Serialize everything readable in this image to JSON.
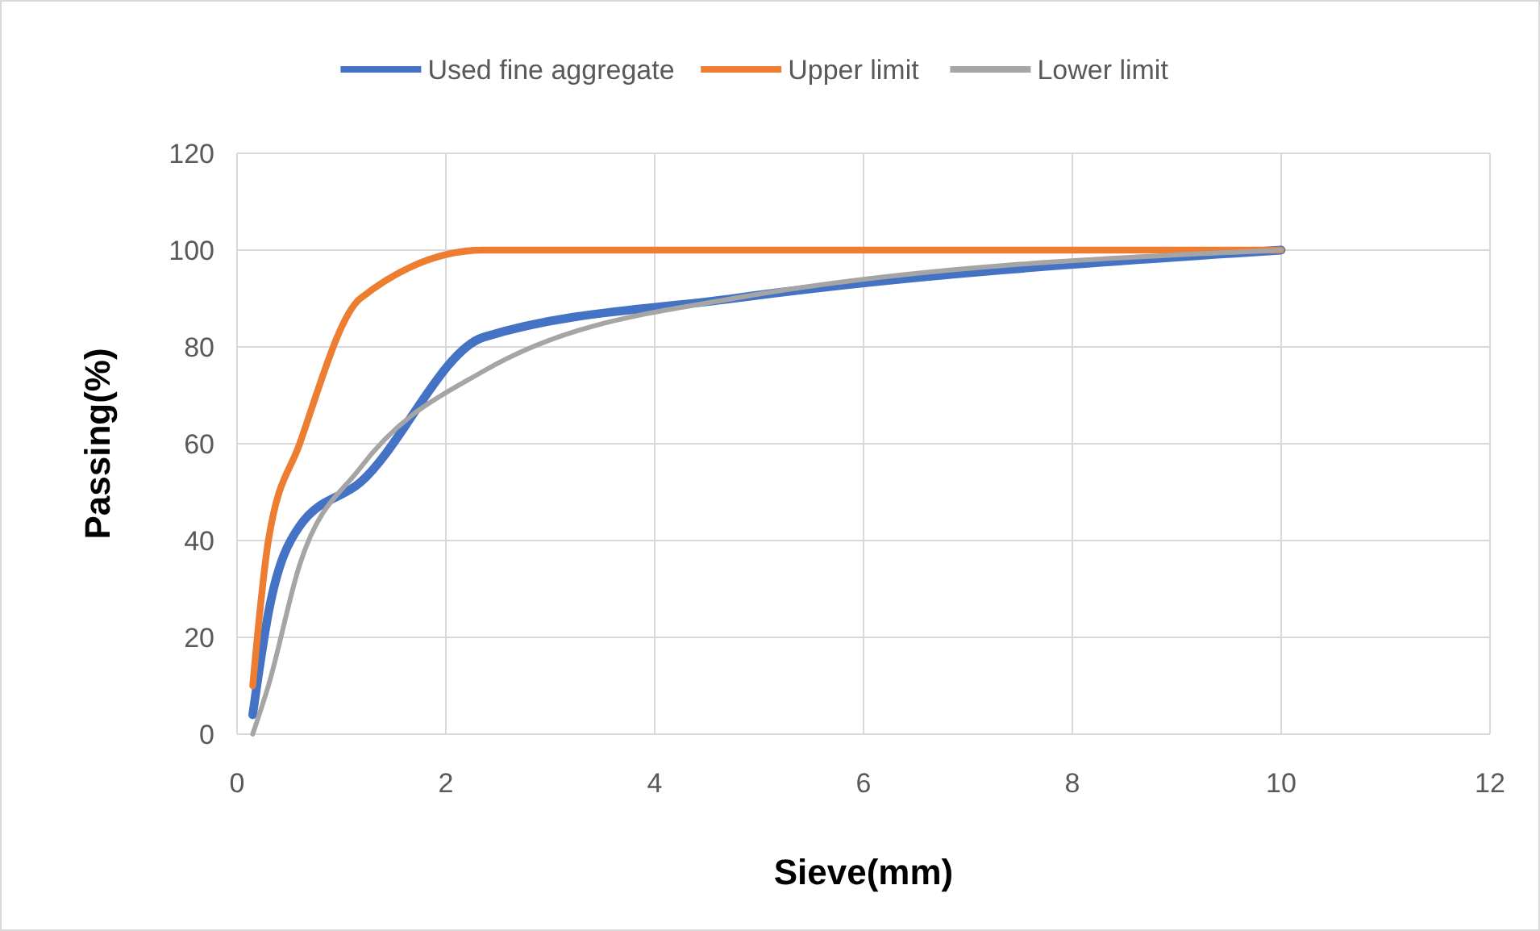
{
  "chart_data": {
    "type": "line",
    "xlabel": "Sieve(mm)",
    "ylabel": "Passing(%)",
    "x": [
      0.15,
      0.3,
      0.6,
      1.18,
      2.36,
      4.75,
      10
    ],
    "series": [
      {
        "name": "Used fine aggregate",
        "color": "#4472c4",
        "values": [
          4,
          25,
          43,
          52,
          82,
          90,
          100
        ]
      },
      {
        "name": "Upper limit",
        "color": "#ed7d31",
        "values": [
          10,
          40,
          60,
          90,
          100,
          100,
          100
        ]
      },
      {
        "name": "Lower limit",
        "color": "#a5a5a5",
        "values": [
          0,
          10,
          35,
          55,
          75,
          90,
          100
        ]
      }
    ],
    "xlim": [
      0,
      12
    ],
    "xticks": [
      0,
      2,
      4,
      6,
      8,
      10,
      12
    ],
    "ylim": [
      0,
      120
    ],
    "yticks": [
      0,
      20,
      40,
      60,
      80,
      100,
      120
    ],
    "grid": true,
    "legend": "top",
    "marker": "none",
    "line_style": "solid"
  }
}
